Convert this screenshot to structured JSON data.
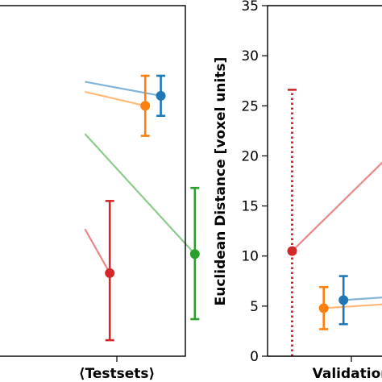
{
  "chart_data": [
    {
      "type": "scatter",
      "title": "",
      "xlabel": "⟨Testsets⟩",
      "ylabel": "",
      "ylim": [
        0,
        35
      ],
      "grid": false,
      "legend": "none",
      "series": [
        {
          "color": "#1f77b4",
          "line_from": {
            "x": -0.45,
            "y": 27.4
          },
          "point": {
            "x": 0.62,
            "y": 26.0,
            "yerr_low": 24.0,
            "yerr_high": 28.0
          }
        },
        {
          "color": "#ff7f0e",
          "line_from": {
            "x": -0.45,
            "y": 26.4
          },
          "point": {
            "x": 0.4,
            "y": 25.0,
            "yerr_low": 22.0,
            "yerr_high": 28.0
          }
        },
        {
          "color": "#2ca02c",
          "line_from": {
            "x": -0.45,
            "y": 22.2
          },
          "point": {
            "x": 1.1,
            "y": 10.2,
            "yerr_low": 3.7,
            "yerr_high": 16.8
          }
        },
        {
          "color": "#d62728",
          "line_from": {
            "x": -0.45,
            "y": 12.7
          },
          "point": {
            "x": -0.1,
            "y": 8.3,
            "yerr_low": 1.6,
            "yerr_high": 15.5
          }
        }
      ]
    },
    {
      "type": "scatter",
      "title": "",
      "xlabel": "Validation",
      "ylabel": "Euclidean Distance [voxel units]",
      "ylim": [
        0,
        35
      ],
      "yticks": [
        0,
        5,
        10,
        15,
        20,
        25,
        30,
        35
      ],
      "grid": false,
      "legend": "none",
      "series": [
        {
          "color": "#d62728",
          "dashed_errorbar": true,
          "point": {
            "x": -0.75,
            "y": 10.5,
            "yerr_low": 0,
            "yerr_high": 26.6
          },
          "line_to": {
            "x": 0.45,
            "y": 19.8
          }
        },
        {
          "color": "#ff7f0e",
          "point": {
            "x": -0.35,
            "y": 4.8,
            "yerr_low": 2.7,
            "yerr_high": 6.9
          },
          "line_to": {
            "x": 0.45,
            "y": 5.2
          }
        },
        {
          "color": "#1f77b4",
          "point": {
            "x": -0.1,
            "y": 5.6,
            "yerr_low": 3.2,
            "yerr_high": 8.0
          },
          "line_to": {
            "x": 0.45,
            "y": 5.9
          }
        }
      ]
    }
  ]
}
